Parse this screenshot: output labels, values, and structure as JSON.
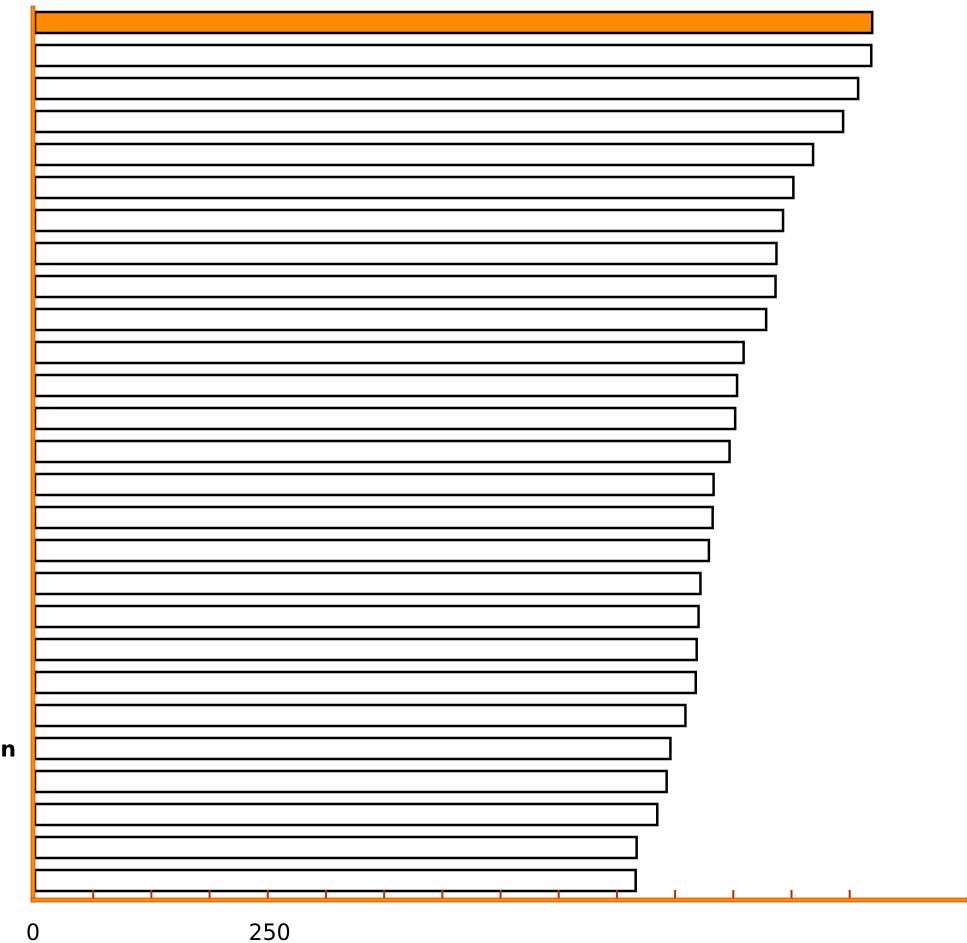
{
  "chart_data": {
    "type": "bar",
    "orientation": "horizontal",
    "title": "",
    "xlabel": "",
    "ylabel": "",
    "highlight_color": "#ff8c00",
    "bar_color": "#ffffff",
    "axis_color": "#ff8c00",
    "categories": [
      "",
      "",
      "",
      "",
      "",
      "",
      "",
      "",
      "",
      "",
      "",
      "",
      "",
      "",
      "",
      "",
      "",
      "",
      "",
      "",
      "",
      "",
      "n",
      "",
      "",
      "",
      "",
      ""
    ],
    "values": [
      892,
      891,
      877,
      861,
      829,
      808,
      797,
      790,
      789,
      779,
      755,
      748,
      746,
      740,
      723,
      722,
      718,
      709,
      707,
      705,
      704,
      693,
      677,
      673,
      663,
      641,
      640,
      0
    ],
    "highlight_index": 0,
    "xlim": [
      0,
      993
    ],
    "x_tick_labels": [
      {
        "value": 0,
        "label": "0"
      },
      {
        "value": 250,
        "label": "250"
      }
    ],
    "x_minor_ticks": [
      62,
      124,
      186,
      248,
      310,
      372,
      434,
      496,
      558,
      620,
      682,
      744,
      806,
      868
    ]
  }
}
